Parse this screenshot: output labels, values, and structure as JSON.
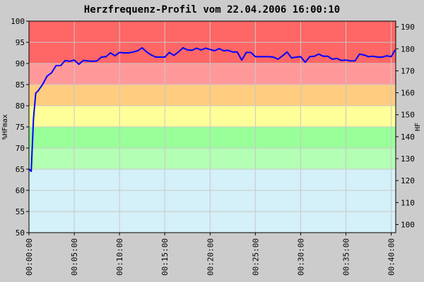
{
  "chart_data": {
    "type": "line",
    "title": "Herzfrequenz-Profil vom 22.04.2006 16:00:10",
    "ylabel": "%HFmax",
    "y2label": "HF",
    "ylim": [
      50,
      100
    ],
    "y2lim": [
      96.3,
      192.6
    ],
    "xlim": [
      0,
      40.5
    ],
    "x_unit": "minutes",
    "y_ticks": [
      50,
      55,
      60,
      65,
      70,
      75,
      80,
      85,
      90,
      95,
      100
    ],
    "y2_ticks": [
      100,
      110,
      120,
      130,
      140,
      150,
      160,
      170,
      180,
      190
    ],
    "x_ticks": [
      {
        "minute": 0,
        "label": "00:00:00"
      },
      {
        "minute": 5,
        "label": "00:05:00"
      },
      {
        "minute": 10,
        "label": "00:10:00"
      },
      {
        "minute": 15,
        "label": "00:15:00"
      },
      {
        "minute": 20,
        "label": "00:20:00"
      },
      {
        "minute": 25,
        "label": "00:25:00"
      },
      {
        "minute": 30,
        "label": "00:30:00"
      },
      {
        "minute": 35,
        "label": "00:35:00"
      },
      {
        "minute": 40,
        "label": "00:40:00"
      }
    ],
    "zones": [
      {
        "from": 90,
        "to": 100,
        "color": "#ff6666"
      },
      {
        "from": 85,
        "to": 90,
        "color": "#ff9999"
      },
      {
        "from": 80,
        "to": 85,
        "color": "#ffcc80"
      },
      {
        "from": 75,
        "to": 80,
        "color": "#ffff99"
      },
      {
        "from": 70,
        "to": 75,
        "color": "#99ff99"
      },
      {
        "from": 65,
        "to": 70,
        "color": "#b3ffb3"
      },
      {
        "from": 50,
        "to": 65,
        "color": "#d4f0f8"
      }
    ],
    "grid": true,
    "line_color": "#0000ff",
    "series": [
      {
        "x": [
          0.0,
          0.25,
          0.5,
          0.75,
          1.0,
          1.5,
          2.0,
          2.5,
          3.0,
          3.5,
          4.0,
          4.5,
          5.0,
          5.5,
          6.0,
          6.5,
          7.0,
          7.5,
          8.0,
          8.5,
          9.0,
          9.5,
          10.0,
          10.5,
          11.0,
          11.5,
          12.0,
          12.5,
          13.0,
          13.5,
          14.0,
          14.5,
          15.0,
          15.5,
          16.0,
          16.5,
          17.0,
          17.5,
          18.0,
          18.5,
          19.0,
          19.5,
          20.0,
          20.5,
          21.0,
          21.5,
          22.0,
          22.5,
          23.0,
          23.5,
          24.0,
          24.5,
          25.0,
          25.5,
          26.0,
          26.5,
          27.0,
          27.5,
          28.0,
          28.5,
          29.0,
          29.5,
          30.0,
          30.5,
          31.0,
          31.5,
          32.0,
          32.5,
          33.0,
          33.5,
          34.0,
          34.5,
          35.0,
          35.5,
          36.0,
          36.5,
          37.0,
          37.5,
          38.0,
          38.5,
          39.0,
          39.5,
          40.0,
          40.4
        ],
        "y": [
          65.0,
          64.5,
          77.0,
          83.0,
          83.5,
          85.0,
          87.0,
          87.8,
          89.5,
          89.5,
          90.7,
          90.5,
          90.8,
          89.8,
          90.7,
          90.6,
          90.5,
          90.6,
          91.5,
          91.6,
          92.5,
          91.8,
          92.6,
          92.5,
          92.5,
          92.7,
          93.0,
          93.7,
          92.7,
          92.0,
          91.5,
          91.5,
          91.5,
          92.6,
          91.9,
          92.7,
          93.7,
          93.2,
          93.1,
          93.6,
          93.2,
          93.6,
          93.3,
          93.0,
          93.5,
          93.0,
          93.1,
          92.7,
          92.7,
          90.8,
          92.6,
          92.6,
          91.6,
          91.6,
          91.6,
          91.6,
          91.5,
          91.0,
          91.8,
          92.7,
          91.3,
          91.5,
          91.6,
          90.3,
          91.6,
          91.7,
          92.2,
          91.7,
          91.7,
          91.0,
          91.2,
          90.7,
          90.8,
          90.6,
          90.6,
          92.2,
          92.0,
          91.6,
          91.7,
          91.5,
          91.5,
          91.8,
          91.6,
          93.1
        ]
      }
    ]
  }
}
